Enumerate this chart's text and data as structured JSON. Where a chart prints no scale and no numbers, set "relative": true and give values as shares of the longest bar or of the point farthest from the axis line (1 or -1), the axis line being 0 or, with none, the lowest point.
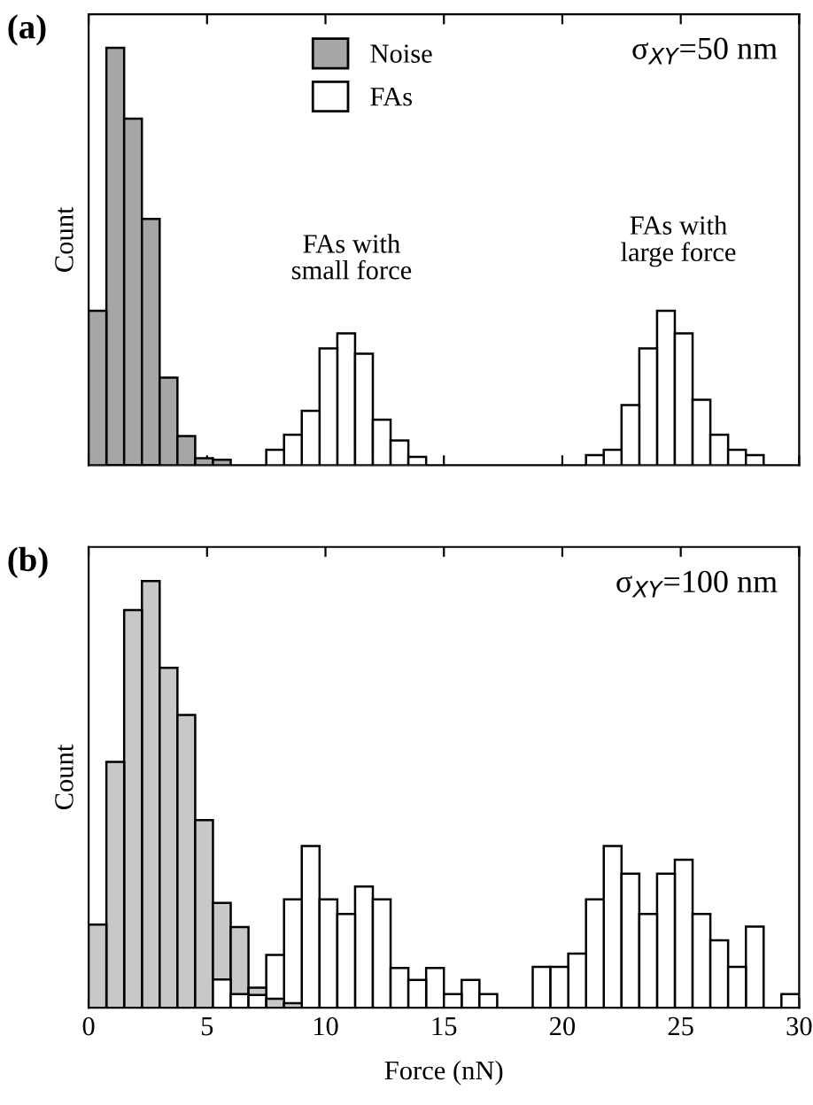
{
  "chart_data": [
    {
      "type": "bar",
      "title": "(a)",
      "ylabel": "Count",
      "relative": true,
      "xlim": [
        0,
        30
      ],
      "xticks": [
        0,
        5,
        10,
        15,
        20,
        25,
        30
      ],
      "tick_labels": false,
      "legend": "top",
      "grid": false,
      "x": [
        0.375,
        1.125,
        1.875,
        2.625,
        3.375,
        4.125,
        4.875,
        5.625,
        6.375,
        7.125,
        7.875,
        8.625,
        9.375,
        10.125,
        10.875,
        11.625,
        12.375,
        13.125,
        13.875,
        14.625,
        15.375,
        16.125,
        16.875,
        17.625,
        18.375,
        19.125,
        19.875,
        20.625,
        21.375,
        22.125,
        22.875,
        23.625,
        24.375,
        25.125,
        25.875,
        26.625,
        27.375,
        28.125
      ],
      "series": [
        {
          "name": "Noise",
          "color": "#a6a6a6",
          "values": [
            0.37,
            1.0,
            0.83,
            0.59,
            0.21,
            0.07,
            0.017,
            0.013,
            null,
            null,
            null,
            null,
            null,
            null,
            null,
            null,
            null,
            null,
            null,
            null,
            null,
            null,
            null,
            null,
            null,
            null,
            null,
            null,
            null,
            null,
            null,
            null,
            null,
            null,
            null,
            null,
            null,
            null
          ]
        },
        {
          "name": "FAs",
          "color": "#ffffff",
          "values": [
            null,
            null,
            null,
            null,
            null,
            null,
            null,
            null,
            null,
            null,
            0.037,
            0.073,
            0.13,
            0.28,
            0.316,
            0.267,
            0.109,
            0.059,
            0.02,
            null,
            null,
            null,
            null,
            null,
            null,
            null,
            null,
            null,
            0.024,
            0.037,
            0.144,
            0.28,
            0.37,
            0.316,
            0.157,
            0.073,
            0.037,
            0.024
          ]
        }
      ],
      "annotations": [
        "σ$_{XY}$=50 nm",
        "FAs with\nsmall force",
        "FAs with\nlarge force"
      ]
    },
    {
      "type": "bar",
      "title": "(b)",
      "ylabel": "Count",
      "xlabel": "Force (nN)",
      "relative": true,
      "xlim": [
        0,
        30
      ],
      "xticks": [
        0,
        5,
        10,
        15,
        20,
        25,
        30
      ],
      "tick_labels": "x",
      "grid": false,
      "x": [
        0.375,
        1.125,
        1.875,
        2.625,
        3.375,
        4.125,
        4.875,
        5.625,
        6.375,
        7.125,
        7.875,
        8.625,
        9.375,
        10.125,
        10.875,
        11.625,
        12.375,
        13.125,
        13.875,
        14.625,
        15.375,
        16.125,
        16.875,
        17.625,
        18.375,
        19.125,
        19.875,
        20.625,
        21.375,
        22.125,
        22.875,
        23.625,
        24.375,
        25.125,
        25.875,
        26.625,
        27.375,
        28.125,
        28.875,
        29.625
      ],
      "series": [
        {
          "color": "#c8c8c8",
          "values": [
            0.195,
            0.576,
            0.932,
            1.0,
            0.797,
            0.686,
            0.44,
            0.246,
            0.189,
            0.047,
            0.021,
            0.011,
            null,
            null,
            null,
            null,
            null,
            null,
            null,
            null,
            null,
            null,
            null,
            null,
            null,
            null,
            null,
            null,
            null,
            null,
            null,
            null,
            null,
            null,
            null,
            null,
            null,
            null,
            null,
            null
          ]
        },
        {
          "color": "#ffffff",
          "values": [
            null,
            null,
            null,
            null,
            null,
            null,
            null,
            0.066,
            0.032,
            0.03,
            0.124,
            0.254,
            0.379,
            0.254,
            0.22,
            0.284,
            0.254,
            0.093,
            0.065,
            0.093,
            0.032,
            0.065,
            0.032,
            null,
            null,
            0.096,
            0.096,
            0.127,
            0.254,
            0.379,
            0.314,
            0.22,
            0.314,
            0.347,
            0.22,
            0.158,
            0.096,
            0.19,
            null,
            0.032
          ]
        }
      ],
      "annotations": [
        "σ$_{XY}$=100 nm"
      ]
    }
  ]
}
